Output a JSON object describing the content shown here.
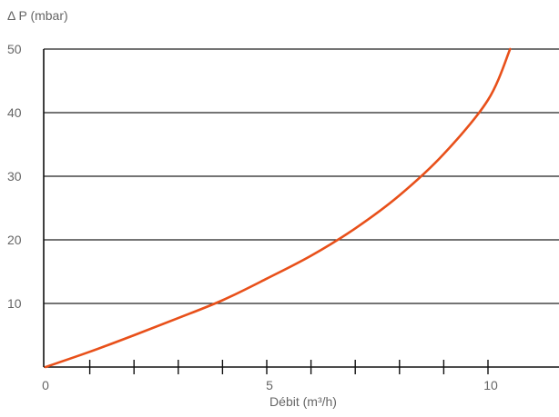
{
  "chart_data": {
    "type": "line",
    "title": "",
    "ylabel": "Δ P (mbar)",
    "xlabel": "Débit (m³/h)",
    "xlim": [
      0,
      10.5
    ],
    "ylim": [
      0,
      50
    ],
    "xticks": [
      0,
      5,
      10
    ],
    "yticks": [
      10,
      20,
      30,
      40,
      50
    ],
    "x_minor_ticks": [
      1,
      2,
      3,
      4,
      5,
      6,
      7,
      8,
      9,
      10
    ],
    "grid": "horizontal",
    "series": [
      {
        "color": "#e8501a",
        "x": [
          0,
          1,
          2,
          3,
          4,
          5,
          6,
          7,
          8,
          9,
          10,
          10.5
        ],
        "y": [
          0,
          2.4,
          5.0,
          7.7,
          10.5,
          13.9,
          17.5,
          21.8,
          27.0,
          33.5,
          42.0,
          50
        ]
      }
    ],
    "colors": {
      "axis": "#111111",
      "grid": "#222222",
      "text": "#666666"
    }
  }
}
